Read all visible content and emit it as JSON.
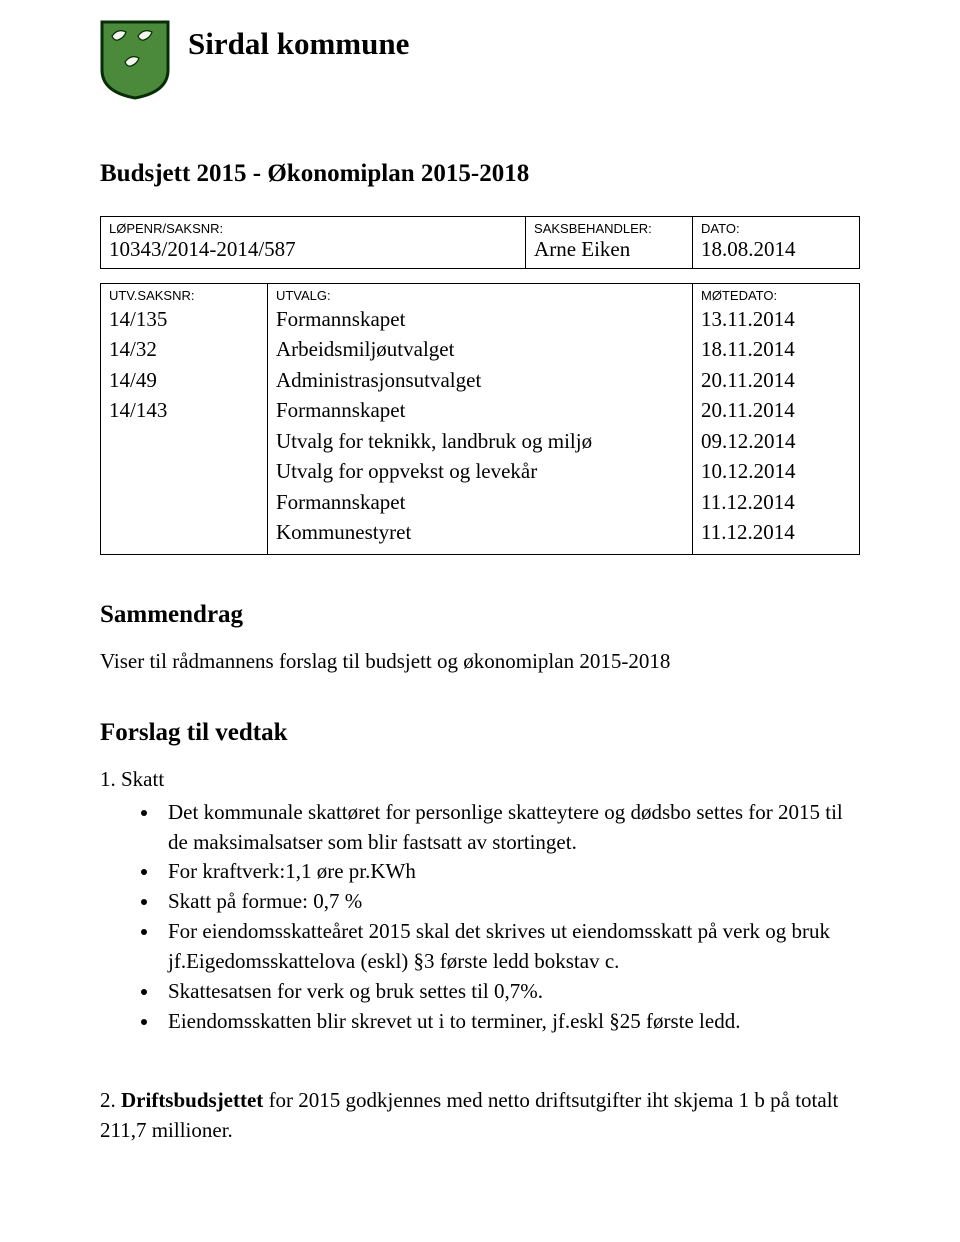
{
  "header": {
    "org_name": "Sirdal kommune",
    "crest_colors": {
      "shield_bg": "#4a8a3a",
      "bird_fill": "#f5f5f0",
      "shield_border": "#062d06"
    }
  },
  "doc": {
    "title": "Budsjett 2015 - Økonomiplan 2015-2018"
  },
  "meta": {
    "lopenr_label": "LØPENR/SAKSNR:",
    "lopenr_value": "10343/2014-2014/587",
    "saksbeh_label": "SAKSBEHANDLER:",
    "saksbeh_value": "Arne Eiken",
    "dato_label": "DATO:",
    "dato_value": "18.08.2014"
  },
  "committee_header": {
    "utvsaksnr_label": "UTV.SAKSNR:",
    "utvalg_label": "UTVALG:",
    "motedato_label": "MØTEDATO:"
  },
  "committee_rows": [
    {
      "nr": "14/135",
      "utvalg": "Formannskapet",
      "dato": "13.11.2014"
    },
    {
      "nr": "14/32",
      "utvalg": "Arbeidsmiljøutvalget",
      "dato": "18.11.2014"
    },
    {
      "nr": "14/49",
      "utvalg": "Administrasjonsutvalget",
      "dato": "20.11.2014"
    },
    {
      "nr": "14/143",
      "utvalg": "Formannskapet",
      "dato": "20.11.2014"
    },
    {
      "nr": "",
      "utvalg": "Utvalg for teknikk, landbruk og miljø",
      "dato": "09.12.2014"
    },
    {
      "nr": "",
      "utvalg": "Utvalg for oppvekst og levekår",
      "dato": "10.12.2014"
    },
    {
      "nr": "",
      "utvalg": "Formannskapet",
      "dato": "11.12.2014"
    },
    {
      "nr": "",
      "utvalg": "Kommunestyret",
      "dato": "11.12.2014"
    }
  ],
  "sammendrag": {
    "heading": "Sammendrag",
    "text": "Viser til rådmannens forslag til budsjett og økonomiplan 2015-2018"
  },
  "vedtak": {
    "heading": "Forslag til vedtak",
    "item1_label": "1. Skatt",
    "bullets": [
      "Det kommunale skattøret for personlige skatteytere og dødsbo settes for 2015 til de maksimalsatser som blir fastsatt av stortinget.",
      "For kraftverk:1,1 øre pr.KWh",
      "Skatt på formue: 0,7 %",
      "For eiendomsskatteåret 2015 skal det skrives ut eiendomsskatt på verk og bruk jf.Eigedomsskattelova (eskl) §3 første ledd bokstav c.",
      "Skattesatsen for verk og bruk settes til 0,7%.",
      "Eiendomsskatten blir skrevet ut i to terminer, jf.eskl §25 første ledd."
    ],
    "item2_prefix": "2. ",
    "item2_bold": "Driftsbudsjettet",
    "item2_rest": " for 2015 godkjennes med netto driftsutgifter iht skjema 1 b på totalt 211,7 millioner."
  }
}
